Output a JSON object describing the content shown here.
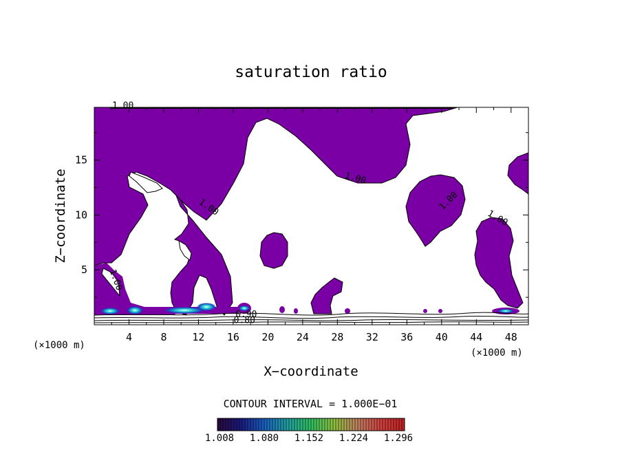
{
  "chart_data": {
    "type": "contour",
    "title": "saturation ratio",
    "xlabel": "X−coordinate",
    "ylabel": "Z−coordinate",
    "x_unit_label": "(×1000 m)",
    "y_unit_label": "(×1000 m)",
    "xlim": [
      0,
      50
    ],
    "ylim": [
      0,
      19.8
    ],
    "x_ticks": [
      4,
      8,
      12,
      16,
      20,
      24,
      28,
      32,
      36,
      40,
      44,
      48
    ],
    "x_tick_labels": [
      "4",
      "8",
      "12",
      "16",
      "20",
      "24",
      "28",
      "32",
      "36",
      "40",
      "44",
      "48"
    ],
    "y_ticks": [
      5,
      10,
      15
    ],
    "y_tick_labels": [
      "5",
      "10",
      "15"
    ],
    "contour_interval_text": "CONTOUR INTERVAL = 1.000E−01",
    "contour_labels": [
      {
        "text": "1.00",
        "x": 3.3,
        "y": 19.7
      },
      {
        "text": "1.00",
        "x": 13.0,
        "y": 10.5
      },
      {
        "text": "1.00",
        "x": 30.0,
        "y": 13.1
      },
      {
        "text": "1.00",
        "x": 41.0,
        "y": 11.1
      },
      {
        "text": "1.00",
        "x": 46.3,
        "y": 9.5
      },
      {
        "text": "1.00",
        "x": 2.2,
        "y": 4.0
      },
      {
        "text": "0.90",
        "x": 17.5,
        "y": 0.7
      },
      {
        "text": "0.80",
        "x": 17.3,
        "y": 0.15
      }
    ],
    "fill_color": "#7a00a6",
    "colorbar": {
      "ticks": [
        "1.008",
        "1.080",
        "1.152",
        "1.224",
        "1.296"
      ],
      "colors": [
        "#2a0a3a",
        "#1a1a80",
        "#1a60c0",
        "#20a0a0",
        "#30c060",
        "#90c040",
        "#c08060",
        "#d04040",
        "#c02020"
      ]
    }
  }
}
